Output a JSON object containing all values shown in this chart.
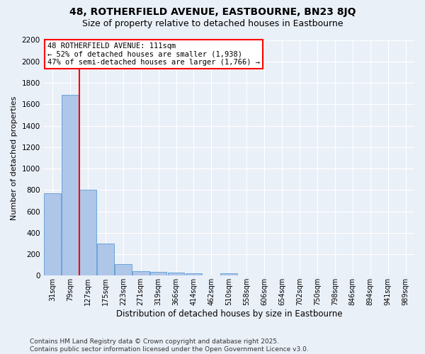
{
  "title": "48, ROTHERFIELD AVENUE, EASTBOURNE, BN23 8JQ",
  "subtitle": "Size of property relative to detached houses in Eastbourne",
  "xlabel": "Distribution of detached houses by size in Eastbourne",
  "ylabel": "Number of detached properties",
  "categories": [
    "31sqm",
    "79sqm",
    "127sqm",
    "175sqm",
    "223sqm",
    "271sqm",
    "319sqm",
    "366sqm",
    "414sqm",
    "462sqm",
    "510sqm",
    "558sqm",
    "606sqm",
    "654sqm",
    "702sqm",
    "750sqm",
    "798sqm",
    "846sqm",
    "894sqm",
    "941sqm",
    "989sqm"
  ],
  "values": [
    770,
    1690,
    800,
    300,
    110,
    40,
    35,
    30,
    20,
    0,
    20,
    0,
    0,
    0,
    0,
    0,
    0,
    0,
    0,
    0,
    0
  ],
  "bar_color": "#aec6e8",
  "bar_edge_color": "#5b9bd5",
  "vline_color": "red",
  "annotation_text": "48 ROTHERFIELD AVENUE: 111sqm\n← 52% of detached houses are smaller (1,938)\n47% of semi-detached houses are larger (1,766) →",
  "annotation_box_color": "white",
  "annotation_box_edge_color": "red",
  "ylim": [
    0,
    2200
  ],
  "yticks": [
    0,
    200,
    400,
    600,
    800,
    1000,
    1200,
    1400,
    1600,
    1800,
    2000,
    2200
  ],
  "background_color": "#eaf0f8",
  "grid_color": "white",
  "footer_line1": "Contains HM Land Registry data © Crown copyright and database right 2025.",
  "footer_line2": "Contains public sector information licensed under the Open Government Licence v3.0.",
  "title_fontsize": 10,
  "subtitle_fontsize": 9,
  "annotation_fontsize": 7.5,
  "footer_fontsize": 6.5,
  "ylabel_fontsize": 8,
  "xlabel_fontsize": 8.5
}
